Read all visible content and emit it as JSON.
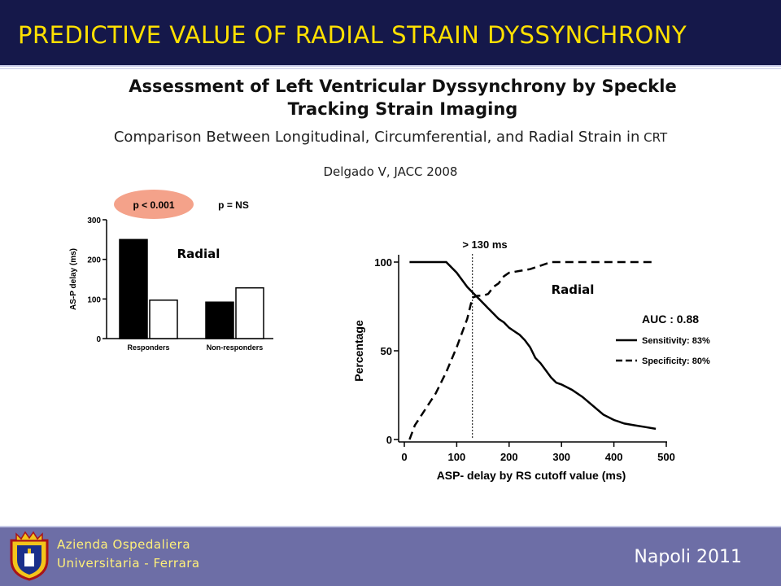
{
  "header": {
    "title": "PREDICTIVE VALUE OF RADIAL STRAIN DYSSYNCHRONY"
  },
  "subtitle": {
    "line1": "Assessment of Left Ventricular Dyssynchrony by Speckle",
    "line2": "Tracking Strain Imaging"
  },
  "comparison": {
    "text": "Comparison Between Longitudinal, Circumferential, and Radial Strain in",
    "suffix": " CRT"
  },
  "citation": "Delgado V, JACC 2008",
  "colors": {
    "header_bg": "#15184a",
    "title": "#ffe000",
    "footer_bg": "#6d6ea6",
    "footer_text": "#fff07a",
    "p_badge": "#f4a28a"
  },
  "footer": {
    "org_line1": "Azienda Ospedaliera",
    "org_line2": "Universitaria - Ferrara",
    "event": "Napoli  2011",
    "logo": "ferrara-crest-icon"
  },
  "chart_data": [
    {
      "type": "bar",
      "categories": [
        "Responders",
        "Non-responders"
      ],
      "series": [
        {
          "values": [
            250,
            92
          ],
          "color": "#000000"
        },
        {
          "values": [
            97,
            128
          ],
          "color": "#ffffff"
        }
      ],
      "ylabel": "AS-P delay (ms)",
      "ylim": [
        0,
        300
      ],
      "yticks": [
        0,
        100,
        200,
        300
      ],
      "annotations": {
        "p_responders": "p < 0.001",
        "p_nonresponders": "p = NS",
        "panel_label": "Radial"
      }
    },
    {
      "type": "line",
      "xlabel": "ASP- delay by RS cutoff value (ms)",
      "ylabel": "Percentage",
      "xlim": [
        0,
        500
      ],
      "ylim": [
        0,
        100
      ],
      "xticks": [
        0,
        100,
        200,
        300,
        400,
        500
      ],
      "yticks": [
        0,
        50,
        100
      ],
      "cutoff": {
        "x": 130,
        "label": "> 130 ms"
      },
      "panel_label": "Radial",
      "auc_label": "AUC : 0.88",
      "series": [
        {
          "name": "Sensitivity: 83%",
          "style": "solid",
          "x": [
            10,
            80,
            100,
            110,
            120,
            130,
            140,
            150,
            160,
            170,
            180,
            190,
            200,
            210,
            220,
            230,
            240,
            250,
            260,
            270,
            280,
            290,
            300,
            320,
            340,
            360,
            380,
            400,
            420,
            440,
            460,
            480
          ],
          "y": [
            100,
            100,
            94,
            90,
            86,
            83,
            80,
            77,
            74,
            71,
            68,
            66,
            63,
            61,
            59,
            56,
            52,
            46,
            43,
            39,
            35,
            32,
            31,
            28,
            24,
            19,
            14,
            11,
            9,
            8,
            7,
            6
          ]
        },
        {
          "name": "Specificity: 80%",
          "style": "dashed",
          "x": [
            10,
            20,
            40,
            60,
            80,
            100,
            110,
            120,
            130,
            140,
            150,
            160,
            170,
            180,
            190,
            200,
            220,
            240,
            260,
            280,
            300,
            350,
            400,
            480
          ],
          "y": [
            0,
            8,
            17,
            26,
            38,
            52,
            60,
            68,
            80,
            81,
            81,
            82,
            86,
            88,
            92,
            94,
            95,
            96,
            98,
            100,
            100,
            100,
            100,
            100
          ]
        }
      ]
    }
  ]
}
